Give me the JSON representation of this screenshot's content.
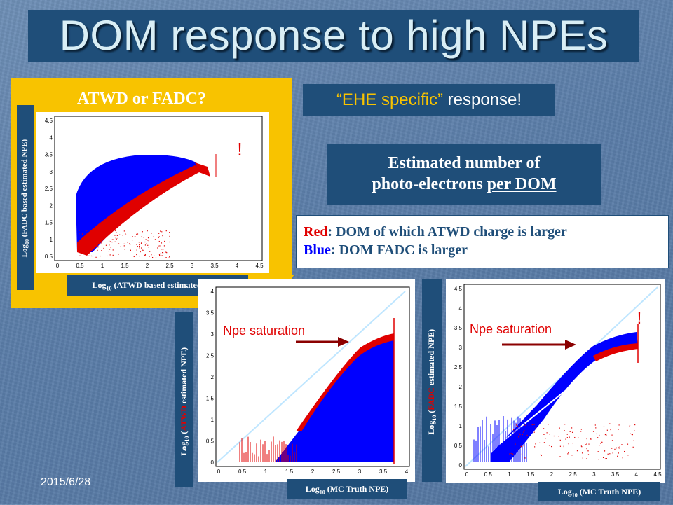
{
  "slide": {
    "title": "DOM response to high NPEs",
    "date": "2015/6/28"
  },
  "atwd_panel": {
    "title": "ATWD or FADC?",
    "ylabel_prefix": "Log",
    "ylabel_sub": "10",
    "ylabel_text": " (FADC based estimated NPE)",
    "xlabel_prefix": "Log",
    "xlabel_sub": "10",
    "xlabel_text": " (ATWD based estimated  NPE)",
    "exclaim": "!",
    "yticks": [
      "4.5",
      "4",
      "3.5",
      "3",
      "2.5",
      "2",
      "1.5",
      "1",
      "0.5"
    ],
    "xticks": [
      "0",
      "0.5",
      "1",
      "1.5",
      "2",
      "2.5",
      "3",
      "3.5",
      "4",
      "4.5"
    ]
  },
  "ehe_box": {
    "quoted": "“EHE specific”",
    "rest": " response!"
  },
  "estimated_box": {
    "line1": "Estimated number of",
    "line2_start": "photo-electrons ",
    "line2_under": "per DOM"
  },
  "legend": {
    "red_word": "Red",
    "red_text": ":  DOM of which ATWD charge is larger",
    "blue_word": "Blue",
    "blue_text": ": DOM FADC is larger"
  },
  "atwd_mc_panel": {
    "ylabel_prefix": "Log",
    "ylabel_sub": "10",
    "ylabel_open": " (",
    "ylabel_colored": "ATWD",
    "ylabel_rest": " estimated NPE)",
    "xlabel_prefix": "Log",
    "xlabel_sub": "10",
    "xlabel_text": " (MC Truth NPE)",
    "saturation_label": "Npe saturation",
    "yticks": [
      "4",
      "3.5",
      "3",
      "2.5",
      "2",
      "1.5",
      "1",
      "0.5",
      "0"
    ],
    "xticks": [
      "0",
      "0.5",
      "1",
      "1.5",
      "2",
      "2.5",
      "3",
      "3.5",
      "4"
    ]
  },
  "fadc_mc_panel": {
    "ylabel_prefix": "Log",
    "ylabel_sub": "10",
    "ylabel_open": " (",
    "ylabel_colored": "FADC",
    "ylabel_rest": " estimated NPE)",
    "xlabel_prefix": "Log",
    "xlabel_sub": "10",
    "xlabel_text": " (MC Truth NPE)",
    "saturation_label": "Npe saturation",
    "exclaim": "!",
    "yticks": [
      "4.5",
      "4",
      "3.5",
      "3",
      "2.5",
      "2",
      "1.5",
      "1",
      "0.5",
      "0"
    ],
    "xticks": [
      "0",
      "0.5",
      "1",
      "1.5",
      "2",
      "2.5",
      "3",
      "3.5",
      "4",
      "4.5"
    ]
  },
  "colors": {
    "title_bg": "#1f4e79",
    "title_text": "#d9eef5",
    "panel_yellow": "#f8c300",
    "atwd_red": "#e00000",
    "fadc_blue": "#0000ff"
  }
}
